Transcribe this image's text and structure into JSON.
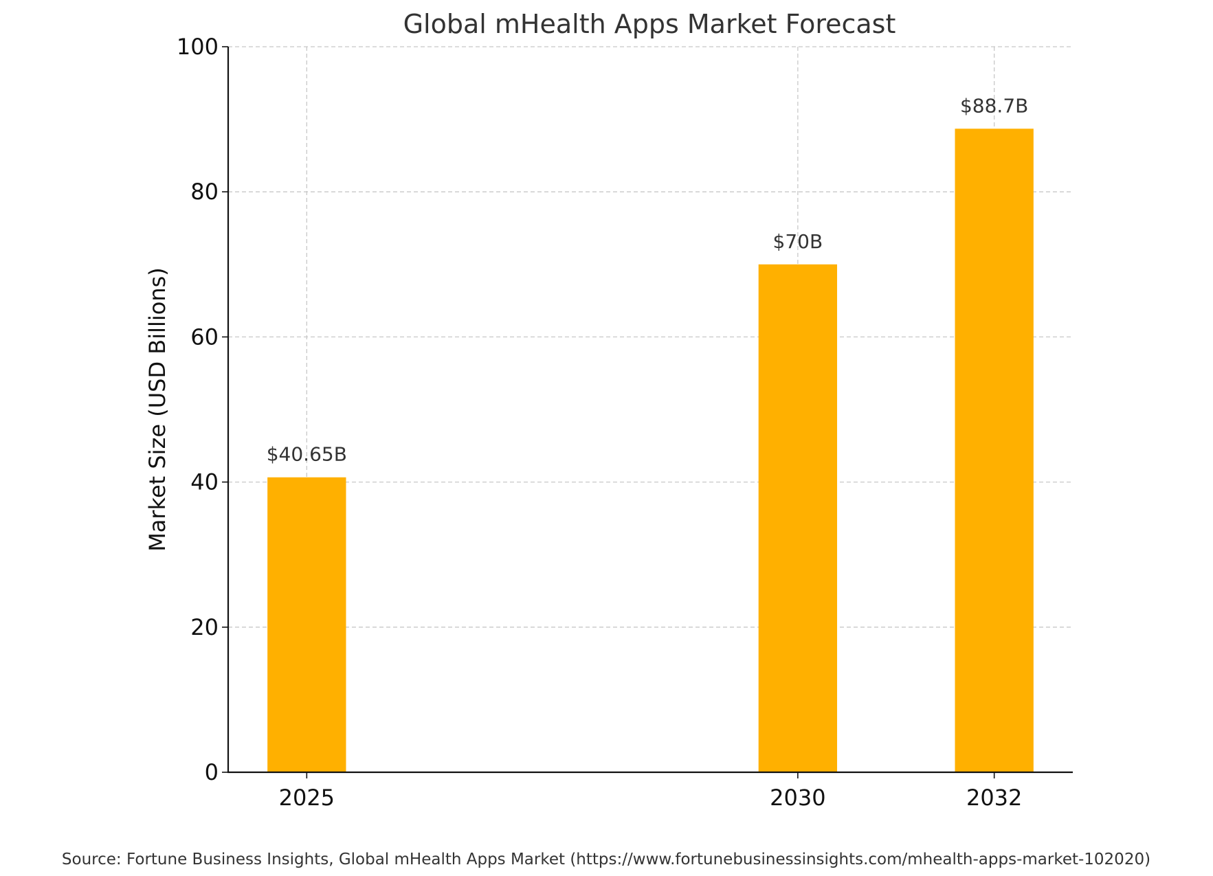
{
  "chart_data": {
    "type": "bar",
    "title": "Global mHealth Apps Market Forecast",
    "xlabel": "",
    "ylabel": "Market Size (USD Billions)",
    "x": [
      2025,
      2030,
      2032
    ],
    "categories": [
      "2025",
      "2030",
      "2032"
    ],
    "values": [
      40.65,
      70,
      88.7
    ],
    "data_labels": [
      "$40.65B",
      "$70B",
      "$88.7B"
    ],
    "xlim": [
      2024.2,
      2032.8
    ],
    "ylim": [
      0,
      100
    ],
    "yticks": [
      0,
      20,
      40,
      60,
      80,
      100
    ],
    "ytick_labels": [
      "0",
      "20",
      "40",
      "60",
      "80",
      "100"
    ],
    "grid": true,
    "bar_color": "#FFB000"
  },
  "footer": {
    "source": "Source: Fortune Business Insights, Global mHealth Apps Market (https://www.fortunebusinessinsights.com/mhealth-apps-market-102020)"
  }
}
